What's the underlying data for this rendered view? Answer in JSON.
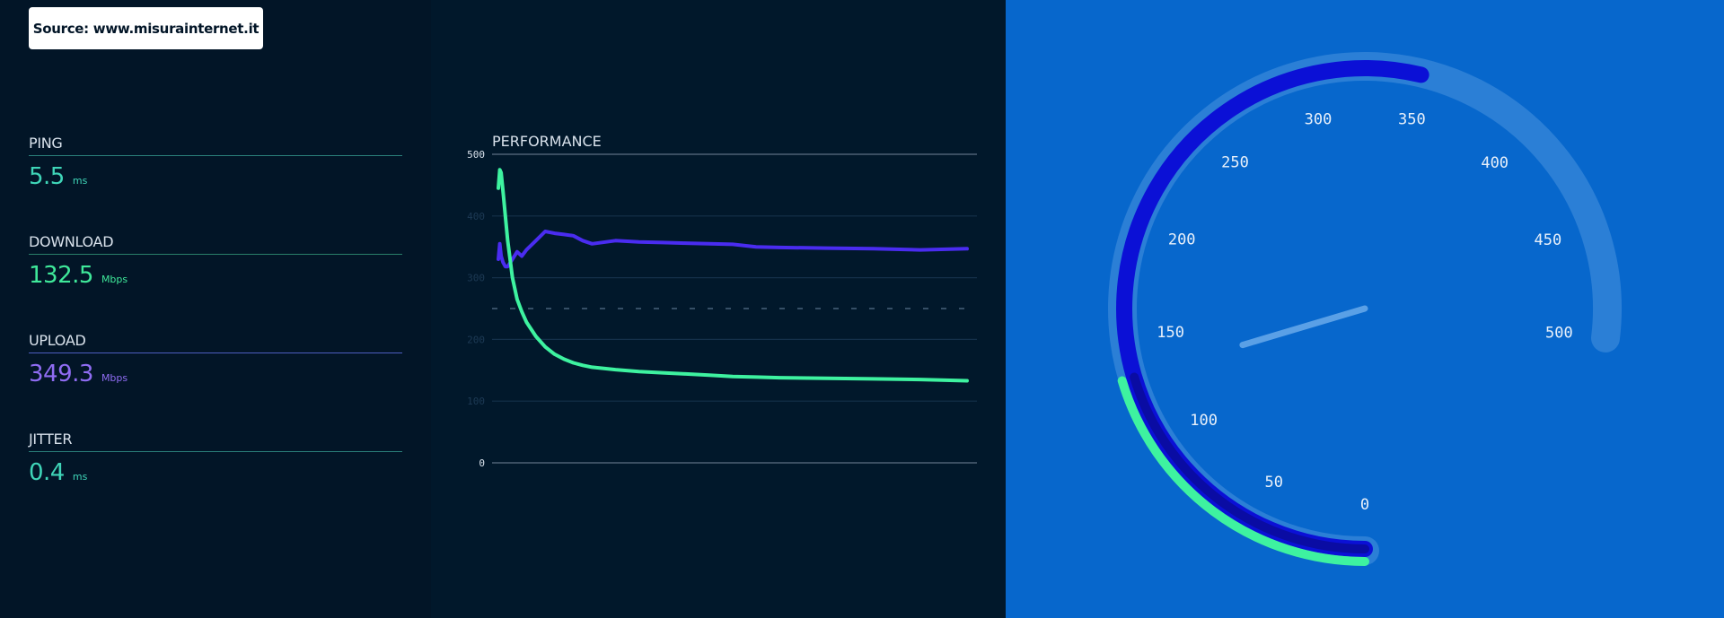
{
  "source_label": "Source: www.misurainternet.it",
  "metrics": [
    {
      "label": "PING",
      "value": "5.5",
      "unit": "ms",
      "color": "#3fd5b8",
      "line": "#2a7f7a"
    },
    {
      "label": "DOWNLOAD",
      "value": "132.5",
      "unit": "Mbps",
      "color": "#3fe89a",
      "line": "#2a7f6a"
    },
    {
      "label": "UPLOAD",
      "value": "349.3",
      "unit": "Mbps",
      "color": "#8f6cf2",
      "line": "#4d5ec0"
    },
    {
      "label": "JITTER",
      "value": "0.4",
      "unit": "ms",
      "color": "#3fd5b8",
      "line": "#2a7f7a"
    }
  ],
  "chart_data": {
    "type": "line",
    "title": "PERFORMANCE",
    "ylim": [
      0,
      500
    ],
    "y_ticks": [
      "0",
      "100",
      "200",
      "300",
      "400",
      "500"
    ],
    "grid": true,
    "reference_line": 250,
    "x": [
      0,
      0.3,
      0.6,
      1,
      1.5,
      2,
      3,
      4,
      5,
      6,
      8,
      10,
      12,
      14,
      16,
      18,
      20,
      25,
      30,
      35,
      40,
      45,
      50,
      55,
      60,
      70,
      80,
      90,
      100
    ],
    "series": [
      {
        "color": "#3ef2a0",
        "values": [
          445,
          475,
          470,
          440,
          400,
          360,
          300,
          265,
          245,
          228,
          205,
          188,
          176,
          168,
          162,
          158,
          155,
          151,
          148,
          146,
          144,
          142,
          140,
          139,
          138,
          137,
          136,
          135,
          133
        ]
      },
      {
        "color": "#4a2cf0",
        "values": [
          330,
          355,
          335,
          325,
          318,
          318,
          330,
          342,
          335,
          345,
          360,
          375,
          372,
          370,
          368,
          360,
          355,
          360,
          358,
          357,
          356,
          355,
          354,
          350,
          349,
          348,
          347,
          345,
          347
        ]
      }
    ]
  },
  "gauge": {
    "value": 132.5,
    "max": 500,
    "labels": [
      "0",
      "50",
      "100",
      "150",
      "200",
      "250",
      "300",
      "350",
      "400",
      "450",
      "500"
    ],
    "upload_value": 349.3,
    "colors": {
      "track": "#2b7fd6",
      "upload_arc": "#0b10d6",
      "download_arc": "#3ef2a0",
      "needle": "#5aa0e6"
    }
  }
}
